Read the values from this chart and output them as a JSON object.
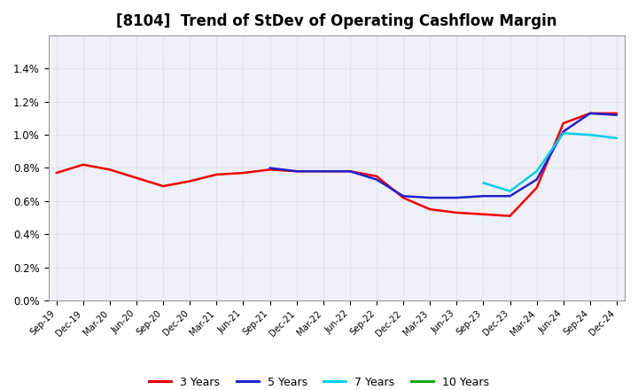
{
  "title": "[8104]  Trend of StDev of Operating Cashflow Margin",
  "title_fontsize": 12,
  "background_color": "#ffffff",
  "plot_bg_color": "#f0f0f8",
  "grid_color": "#aaaaaa",
  "ylim": [
    0.0,
    0.016
  ],
  "yticks": [
    0.0,
    0.002,
    0.004,
    0.006,
    0.008,
    0.01,
    0.012,
    0.014
  ],
  "ytick_labels": [
    "0.0%",
    "0.2%",
    "0.4%",
    "0.6%",
    "0.8%",
    "1.0%",
    "1.2%",
    "1.4%"
  ],
  "x_labels": [
    "Sep-19",
    "Dec-19",
    "Mar-20",
    "Jun-20",
    "Sep-20",
    "Dec-20",
    "Mar-21",
    "Jun-21",
    "Sep-21",
    "Dec-21",
    "Mar-22",
    "Jun-22",
    "Sep-22",
    "Dec-22",
    "Mar-23",
    "Jun-23",
    "Sep-23",
    "Dec-23",
    "Mar-24",
    "Jun-24",
    "Sep-24",
    "Dec-24"
  ],
  "series": {
    "3 Years": {
      "color": "#ee0000",
      "linewidth": 1.8,
      "values": [
        0.0077,
        0.0082,
        0.0079,
        0.0074,
        0.0069,
        0.0072,
        0.0076,
        0.0077,
        0.0079,
        0.0078,
        0.0078,
        0.0078,
        0.0075,
        0.0062,
        0.0055,
        0.0053,
        0.0052,
        0.0051,
        0.0068,
        0.0107,
        0.0113,
        0.0113
      ]
    },
    "5 Years": {
      "color": "#2222cc",
      "linewidth": 1.8,
      "values": [
        null,
        null,
        null,
        null,
        null,
        null,
        null,
        null,
        0.008,
        0.0078,
        0.0078,
        0.0078,
        0.0073,
        0.0063,
        0.0062,
        0.0062,
        0.0063,
        0.0063,
        0.0073,
        0.0102,
        0.0113,
        0.0112
      ]
    },
    "7 Years": {
      "color": "#00ccee",
      "linewidth": 1.8,
      "values": [
        null,
        null,
        null,
        null,
        null,
        null,
        null,
        null,
        null,
        null,
        null,
        null,
        null,
        null,
        null,
        null,
        0.0071,
        0.0066,
        0.0078,
        0.0101,
        0.01,
        0.0098
      ]
    },
    "10 Years": {
      "color": "#00aa00",
      "linewidth": 1.8,
      "values": [
        null,
        null,
        null,
        null,
        null,
        null,
        null,
        null,
        null,
        null,
        null,
        null,
        null,
        null,
        null,
        null,
        null,
        null,
        null,
        null,
        null,
        null
      ]
    }
  },
  "legend_labels": [
    "3 Years",
    "5 Years",
    "7 Years",
    "10 Years"
  ],
  "legend_colors": [
    "#ee0000",
    "#2222cc",
    "#00ccee",
    "#00aa00"
  ]
}
